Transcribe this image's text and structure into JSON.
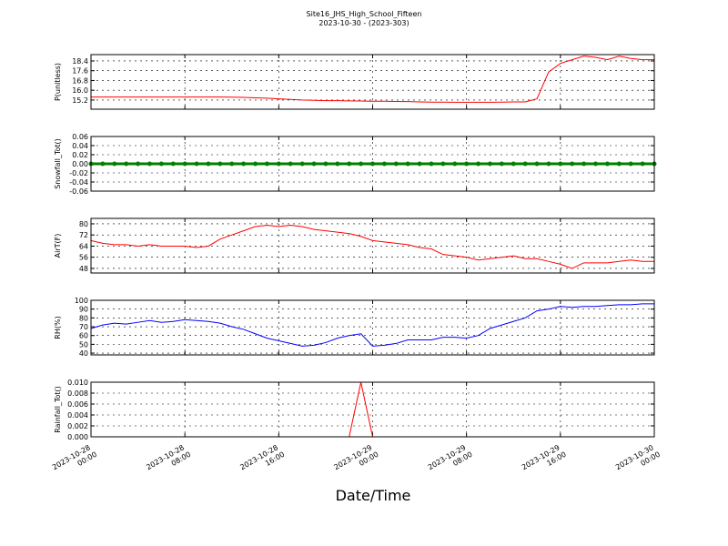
{
  "chart_data": [
    {
      "type": "line",
      "title": "Site16_JHS_High_School_Fifteen",
      "subtitle": "2023-10-30 - (2023-303)",
      "ylabel": "P(unitless)",
      "color": "#ff0000",
      "grid": true,
      "xlim": [
        "2023-10-28 00:00",
        "2023-10-30 00:00"
      ],
      "ylim": [
        14.45,
        18.92
      ],
      "yticks": [
        15.2,
        {
          "value": 16.0,
          "label": "16.0"
        },
        16.8,
        17.6,
        18.4
      ],
      "x": [
        "2023-10-28 00:00",
        "2023-10-28 01:00",
        "2023-10-28 02:00",
        "2023-10-28 03:00",
        "2023-10-28 04:00",
        "2023-10-28 05:00",
        "2023-10-28 06:00",
        "2023-10-28 07:00",
        "2023-10-28 08:00",
        "2023-10-28 09:00",
        "2023-10-28 10:00",
        "2023-10-28 11:00",
        "2023-10-28 12:00",
        "2023-10-28 13:00",
        "2023-10-28 14:00",
        "2023-10-28 15:00",
        "2023-10-28 16:00",
        "2023-10-28 17:00",
        "2023-10-28 18:00",
        "2023-10-28 19:00",
        "2023-10-28 20:00",
        "2023-10-28 21:00",
        "2023-10-28 22:00",
        "2023-10-28 23:00",
        "2023-10-29 00:00",
        "2023-10-29 01:00",
        "2023-10-29 02:00",
        "2023-10-29 03:00",
        "2023-10-29 04:00",
        "2023-10-29 05:00",
        "2023-10-29 06:00",
        "2023-10-29 07:00",
        "2023-10-29 08:00",
        "2023-10-29 09:00",
        "2023-10-29 10:00",
        "2023-10-29 11:00",
        "2023-10-29 12:00",
        "2023-10-29 13:00",
        "2023-10-29 14:00",
        "2023-10-29 15:00",
        "2023-10-29 16:00",
        "2023-10-29 17:00",
        "2023-10-29 18:00",
        "2023-10-29 19:00",
        "2023-10-29 20:00",
        "2023-10-29 21:00",
        "2023-10-29 22:00",
        "2023-10-29 23:00",
        "2023-10-30 00:00"
      ],
      "values": [
        15.45,
        15.45,
        15.45,
        15.45,
        15.45,
        15.45,
        15.45,
        15.45,
        15.45,
        15.45,
        15.45,
        15.45,
        15.44,
        15.42,
        15.38,
        15.35,
        15.3,
        15.25,
        15.2,
        15.18,
        15.15,
        15.15,
        15.13,
        15.12,
        15.1,
        15.1,
        15.08,
        15.07,
        15.05,
        15.03,
        15.03,
        15.02,
        15.02,
        15.02,
        15.02,
        15.03,
        15.05,
        15.05,
        15.3,
        17.5,
        18.2,
        18.5,
        18.8,
        18.7,
        18.5,
        18.8,
        18.6,
        18.5,
        18.5
      ]
    },
    {
      "type": "line",
      "ylabel": "Snowfall_Tot()",
      "color": "#008000",
      "marker": true,
      "grid": true,
      "xlim": [
        "2023-10-28 00:00",
        "2023-10-30 00:00"
      ],
      "ylim": [
        -0.06,
        0.06
      ],
      "yticks": [
        -0.06,
        -0.04,
        -0.02,
        {
          "value": 0,
          "label": "0.00"
        },
        0.02,
        0.04,
        0.06
      ],
      "x": [
        "2023-10-28 00:00",
        "2023-10-28 01:00",
        "2023-10-28 02:00",
        "2023-10-28 03:00",
        "2023-10-28 04:00",
        "2023-10-28 05:00",
        "2023-10-28 06:00",
        "2023-10-28 07:00",
        "2023-10-28 08:00",
        "2023-10-28 09:00",
        "2023-10-28 10:00",
        "2023-10-28 11:00",
        "2023-10-28 12:00",
        "2023-10-28 13:00",
        "2023-10-28 14:00",
        "2023-10-28 15:00",
        "2023-10-28 16:00",
        "2023-10-28 17:00",
        "2023-10-28 18:00",
        "2023-10-28 19:00",
        "2023-10-28 20:00",
        "2023-10-28 21:00",
        "2023-10-28 22:00",
        "2023-10-28 23:00",
        "2023-10-29 00:00",
        "2023-10-29 01:00",
        "2023-10-29 02:00",
        "2023-10-29 03:00",
        "2023-10-29 04:00",
        "2023-10-29 05:00",
        "2023-10-29 06:00",
        "2023-10-29 07:00",
        "2023-10-29 08:00",
        "2023-10-29 09:00",
        "2023-10-29 10:00",
        "2023-10-29 11:00",
        "2023-10-29 12:00",
        "2023-10-29 13:00",
        "2023-10-29 14:00",
        "2023-10-29 15:00",
        "2023-10-29 16:00",
        "2023-10-29 17:00",
        "2023-10-29 18:00",
        "2023-10-29 19:00",
        "2023-10-29 20:00",
        "2023-10-29 21:00",
        "2023-10-29 22:00",
        "2023-10-29 23:00",
        "2023-10-30 00:00"
      ],
      "values": [
        0,
        0,
        0,
        0,
        0,
        0,
        0,
        0,
        0,
        0,
        0,
        0,
        0,
        0,
        0,
        0,
        0,
        0,
        0,
        0,
        0,
        0,
        0,
        0,
        0,
        0,
        0,
        0,
        0,
        0,
        0,
        0,
        0,
        0,
        0,
        0,
        0,
        0,
        0,
        0,
        0,
        0,
        0,
        0,
        0,
        0,
        0,
        0,
        0
      ]
    },
    {
      "type": "line",
      "ylabel": "AirT(F)",
      "color": "#ff0000",
      "grid": true,
      "xlim": [
        "2023-10-28 00:00",
        "2023-10-30 00:00"
      ],
      "ylim": [
        44.7,
        83.9
      ],
      "yticks": [
        48,
        56,
        64,
        72,
        80
      ],
      "x": [
        "2023-10-28 00:00",
        "2023-10-28 01:00",
        "2023-10-28 02:00",
        "2023-10-28 03:00",
        "2023-10-28 04:00",
        "2023-10-28 05:00",
        "2023-10-28 06:00",
        "2023-10-28 07:00",
        "2023-10-28 08:00",
        "2023-10-28 09:00",
        "2023-10-28 10:00",
        "2023-10-28 11:00",
        "2023-10-28 12:00",
        "2023-10-28 13:00",
        "2023-10-28 14:00",
        "2023-10-28 15:00",
        "2023-10-28 16:00",
        "2023-10-28 17:00",
        "2023-10-28 18:00",
        "2023-10-28 19:00",
        "2023-10-28 20:00",
        "2023-10-28 21:00",
        "2023-10-28 22:00",
        "2023-10-28 23:00",
        "2023-10-29 00:00",
        "2023-10-29 01:00",
        "2023-10-29 02:00",
        "2023-10-29 03:00",
        "2023-10-29 04:00",
        "2023-10-29 05:00",
        "2023-10-29 06:00",
        "2023-10-29 07:00",
        "2023-10-29 08:00",
        "2023-10-29 09:00",
        "2023-10-29 10:00",
        "2023-10-29 11:00",
        "2023-10-29 12:00",
        "2023-10-29 13:00",
        "2023-10-29 14:00",
        "2023-10-29 15:00",
        "2023-10-29 16:00",
        "2023-10-29 17:00",
        "2023-10-29 18:00",
        "2023-10-29 19:00",
        "2023-10-29 20:00",
        "2023-10-29 21:00",
        "2023-10-29 22:00",
        "2023-10-29 23:00",
        "2023-10-30 00:00"
      ],
      "values": [
        68,
        66,
        65,
        65,
        64,
        65,
        64,
        64,
        64,
        63,
        64,
        69,
        72,
        75,
        78,
        79,
        78,
        79,
        78,
        76,
        75,
        74,
        73,
        71,
        68,
        67,
        66,
        65,
        63,
        62,
        58,
        57,
        56,
        54,
        55,
        56,
        57,
        55,
        55,
        53,
        51,
        48,
        52,
        52,
        52,
        53,
        54,
        53,
        53
      ]
    },
    {
      "type": "line",
      "ylabel": "RH(%)",
      "color": "#0000ff",
      "grid": true,
      "xlim": [
        "2023-10-28 00:00",
        "2023-10-30 00:00"
      ],
      "ylim": [
        38,
        100
      ],
      "yticks": [
        40,
        50,
        60,
        70,
        80,
        90,
        100
      ],
      "x": [
        "2023-10-28 00:00",
        "2023-10-28 01:00",
        "2023-10-28 02:00",
        "2023-10-28 03:00",
        "2023-10-28 04:00",
        "2023-10-28 05:00",
        "2023-10-28 06:00",
        "2023-10-28 07:00",
        "2023-10-28 08:00",
        "2023-10-28 09:00",
        "2023-10-28 10:00",
        "2023-10-28 11:00",
        "2023-10-28 12:00",
        "2023-10-28 13:00",
        "2023-10-28 14:00",
        "2023-10-28 15:00",
        "2023-10-28 16:00",
        "2023-10-28 17:00",
        "2023-10-28 18:00",
        "2023-10-28 19:00",
        "2023-10-28 20:00",
        "2023-10-28 21:00",
        "2023-10-28 22:00",
        "2023-10-28 23:00",
        "2023-10-29 00:00",
        "2023-10-29 01:00",
        "2023-10-29 02:00",
        "2023-10-29 03:00",
        "2023-10-29 04:00",
        "2023-10-29 05:00",
        "2023-10-29 06:00",
        "2023-10-29 07:00",
        "2023-10-29 08:00",
        "2023-10-29 09:00",
        "2023-10-29 10:00",
        "2023-10-29 11:00",
        "2023-10-29 12:00",
        "2023-10-29 13:00",
        "2023-10-29 14:00",
        "2023-10-29 15:00",
        "2023-10-29 16:00",
        "2023-10-29 17:00",
        "2023-10-29 18:00",
        "2023-10-29 19:00",
        "2023-10-29 20:00",
        "2023-10-29 21:00",
        "2023-10-29 22:00",
        "2023-10-29 23:00",
        "2023-10-30 00:00"
      ],
      "values": [
        68,
        72,
        74,
        73,
        75,
        77,
        75,
        76,
        78,
        77,
        76,
        74,
        70,
        67,
        62,
        57,
        54,
        51,
        48,
        49,
        52,
        57,
        60,
        62,
        48,
        49,
        51,
        55,
        55,
        55,
        58,
        58,
        57,
        60,
        68,
        72,
        76,
        80,
        88,
        90,
        93,
        92,
        93,
        93,
        94,
        95,
        95,
        96,
        96
      ]
    },
    {
      "type": "line",
      "ylabel": "Rainfall_Tot()",
      "xlabel": "Date/Time",
      "color": "#ff0000",
      "grid": true,
      "xlim": [
        "2023-10-28 00:00",
        "2023-10-30 00:00"
      ],
      "ylim": [
        0,
        0.01
      ],
      "xticks": [
        "2023-10-28 00:00",
        "2023-10-28 08:00",
        "2023-10-28 16:00",
        "2023-10-29 00:00",
        "2023-10-29 08:00",
        "2023-10-29 16:00",
        "2023-10-30 00:00"
      ],
      "yticks": [
        {
          "value": 0,
          "label": "0.000"
        },
        0.002,
        0.004,
        0.006,
        0.008,
        {
          "value": 0.01,
          "label": "0.010"
        }
      ],
      "x": [
        "2023-10-28 00:00",
        "2023-10-28 01:00",
        "2023-10-28 02:00",
        "2023-10-28 03:00",
        "2023-10-28 04:00",
        "2023-10-28 05:00",
        "2023-10-28 06:00",
        "2023-10-28 07:00",
        "2023-10-28 08:00",
        "2023-10-28 09:00",
        "2023-10-28 10:00",
        "2023-10-28 11:00",
        "2023-10-28 12:00",
        "2023-10-28 13:00",
        "2023-10-28 14:00",
        "2023-10-28 15:00",
        "2023-10-28 16:00",
        "2023-10-28 17:00",
        "2023-10-28 18:00",
        "2023-10-28 19:00",
        "2023-10-28 20:00",
        "2023-10-28 21:00",
        "2023-10-28 22:00",
        "2023-10-28 23:00",
        "2023-10-29 00:00",
        "2023-10-29 01:00",
        "2023-10-29 02:00",
        "2023-10-29 03:00",
        "2023-10-29 04:00",
        "2023-10-29 05:00",
        "2023-10-29 06:00",
        "2023-10-29 07:00",
        "2023-10-29 08:00",
        "2023-10-29 09:00",
        "2023-10-29 10:00",
        "2023-10-29 11:00",
        "2023-10-29 12:00",
        "2023-10-29 13:00",
        "2023-10-29 14:00",
        "2023-10-29 15:00",
        "2023-10-29 16:00",
        "2023-10-29 17:00",
        "2023-10-29 18:00",
        "2023-10-29 19:00",
        "2023-10-29 20:00",
        "2023-10-29 21:00",
        "2023-10-29 22:00",
        "2023-10-29 23:00",
        "2023-10-30 00:00"
      ],
      "values": [
        0,
        0,
        0,
        0,
        0,
        0,
        0,
        0,
        0,
        0,
        0,
        0,
        0,
        0,
        0,
        0,
        0,
        0,
        0,
        0,
        0,
        0,
        0,
        0.01,
        0,
        0,
        0,
        0,
        0,
        0,
        0,
        0,
        0,
        0,
        0,
        0,
        0,
        0,
        0,
        0,
        0,
        0,
        0,
        0,
        0,
        0,
        0,
        0,
        0
      ]
    }
  ]
}
